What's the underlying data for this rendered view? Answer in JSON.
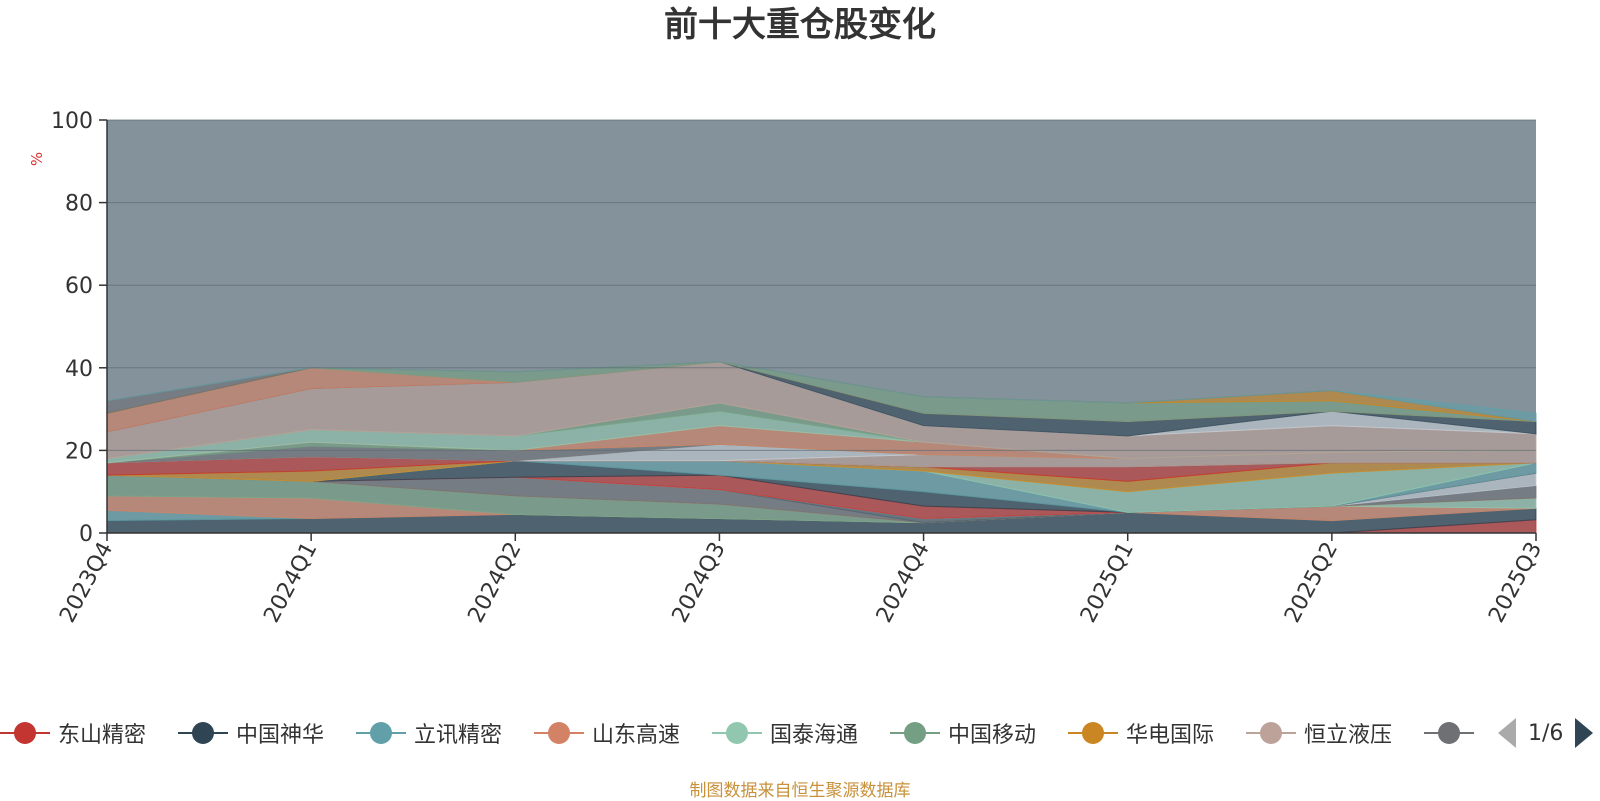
{
  "title": "前十大重仓股变化",
  "source": "制图数据来自恒生聚源数据库",
  "legend_page": "1/6",
  "chart_data": {
    "type": "area",
    "title": "前十大重仓股变化",
    "ylabel": "%",
    "ylim": [
      0,
      100
    ],
    "yticks": [
      0,
      20,
      40,
      60,
      80,
      100
    ],
    "grid": true,
    "legend_position": "bottom",
    "categories": [
      "2023Q4",
      "2024Q1",
      "2024Q2",
      "2024Q3",
      "2024Q4",
      "2025Q1",
      "2025Q2",
      "2025Q3"
    ],
    "series": [
      {
        "name": "东山精密",
        "color": "#c23531",
        "values": [
          0,
          0,
          0,
          0,
          0,
          0,
          0,
          3.2
        ]
      },
      {
        "name": "中国神华",
        "color": "#2f4554",
        "values": [
          3,
          3.5,
          4.5,
          3.5,
          2.5,
          5,
          3,
          2.8
        ]
      },
      {
        "name": "立讯精密",
        "color": "#61a0a8",
        "values": [
          2.5,
          0,
          0,
          0,
          0,
          0,
          0,
          0
        ]
      },
      {
        "name": "山东高速",
        "color": "#d48265",
        "values": [
          3.5,
          5,
          0,
          0,
          0,
          0,
          3.5,
          0
        ]
      },
      {
        "name": "国泰海通",
        "color": "#91c7ae",
        "values": [
          0,
          0,
          0,
          0,
          0,
          0,
          0,
          2.5
        ]
      },
      {
        "name": "中国移动",
        "color": "#749f83",
        "values": [
          5,
          4,
          4.5,
          3.5,
          0,
          0,
          0,
          0
        ]
      },
      {
        "name": "华电国际",
        "color": "#ca8622",
        "values": [
          0,
          0,
          0,
          0,
          0,
          0,
          0,
          0
        ]
      },
      {
        "name": "恒立液压",
        "color": "#bda29a",
        "values": [
          0,
          0,
          0,
          0,
          0,
          0,
          0,
          0
        ]
      },
      {
        "name": "",
        "color": "#6e7074",
        "values": [
          0,
          0,
          4.5,
          3.5,
          0,
          0,
          0,
          3
        ]
      },
      {
        "name": "",
        "color": "#546570",
        "values": [
          0,
          0,
          0,
          0,
          1,
          0,
          0,
          0
        ]
      },
      {
        "name": "",
        "color": "#c4ccd3",
        "values": [
          0,
          0,
          0,
          0,
          0,
          0,
          0,
          3
        ]
      },
      {
        "name": "",
        "color": "#c23531",
        "values": [
          0,
          0,
          0,
          3.5,
          3,
          0,
          0,
          0
        ]
      },
      {
        "name": "",
        "color": "#2f4554",
        "values": [
          0,
          0,
          4,
          0,
          3.5,
          0,
          0,
          0
        ]
      },
      {
        "name": "",
        "color": "#61a0a8",
        "values": [
          0,
          0,
          0,
          3.5,
          5,
          0,
          0,
          2.5
        ]
      },
      {
        "name": "",
        "color": "#91c7ae",
        "values": [
          0,
          0,
          0,
          0,
          0,
          5,
          8,
          0
        ]
      },
      {
        "name": "",
        "color": "#ca8622",
        "values": [
          0,
          2.5,
          0,
          0,
          1,
          2.5,
          2.5,
          0
        ]
      },
      {
        "name": "",
        "color": "#c23531",
        "values": [
          3,
          3.5,
          0,
          0,
          0,
          3.5,
          0,
          0
        ]
      },
      {
        "name": "",
        "color": "#2f4554",
        "values": [
          0,
          0,
          0,
          0,
          0,
          0,
          0,
          0
        ]
      },
      {
        "name": "",
        "color": "#bda29a",
        "values": [
          0,
          0,
          0,
          0,
          3,
          2,
          2.5,
          3
        ]
      },
      {
        "name": "",
        "color": "#c4ccd3",
        "values": [
          0,
          0,
          0,
          4,
          0,
          0,
          0,
          0
        ]
      },
      {
        "name": "",
        "color": "#6e7074",
        "values": [
          0,
          2.5,
          2.5,
          0,
          0,
          0,
          0,
          0
        ]
      },
      {
        "name": "",
        "color": "#749f83",
        "values": [
          0,
          1,
          0,
          0,
          0,
          0,
          0,
          0
        ]
      },
      {
        "name": "",
        "color": "#d48265",
        "values": [
          0,
          0,
          0,
          4.5,
          3,
          0,
          0,
          0
        ]
      },
      {
        "name": "",
        "color": "#91c7ae",
        "values": [
          1,
          3,
          3.5,
          3.5,
          0,
          0,
          0,
          0
        ]
      },
      {
        "name": "",
        "color": "#749f83",
        "values": [
          0,
          0,
          0,
          2,
          0,
          0,
          0,
          0
        ]
      },
      {
        "name": "",
        "color": "#bda29a",
        "values": [
          6.5,
          10,
          13,
          10,
          4,
          5.5,
          6.5,
          4
        ]
      },
      {
        "name": "",
        "color": "#c4ccd3",
        "values": [
          0,
          0,
          0,
          0,
          0,
          0,
          3.5,
          0
        ]
      },
      {
        "name": "",
        "color": "#2f4554",
        "values": [
          0,
          0,
          0,
          0,
          3,
          3.5,
          0,
          3
        ]
      },
      {
        "name": "",
        "color": "#d48265",
        "values": [
          4.5,
          5,
          0,
          0,
          0,
          0,
          0,
          0
        ]
      },
      {
        "name": "",
        "color": "#749f83",
        "values": [
          0,
          0,
          2.5,
          0,
          4,
          4.5,
          2.5,
          0
        ]
      },
      {
        "name": "",
        "color": "#ca8622",
        "values": [
          0,
          0,
          0,
          0,
          0,
          0,
          2.5,
          0
        ]
      },
      {
        "name": "",
        "color": "#6e7074",
        "values": [
          3,
          0,
          0,
          0,
          0,
          0,
          0,
          0
        ]
      },
      {
        "name": "",
        "color": "#61a0a8",
        "values": [
          0,
          0,
          0,
          0,
          0,
          0,
          0,
          2
        ]
      }
    ]
  }
}
